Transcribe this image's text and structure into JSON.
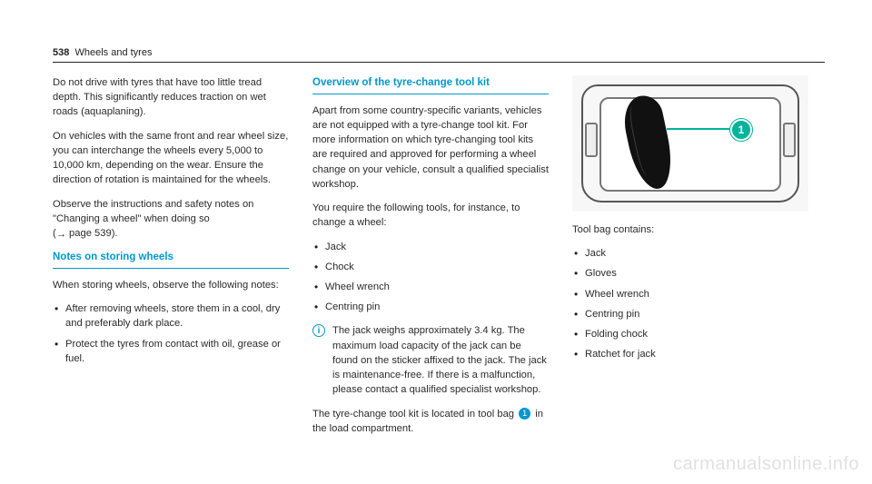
{
  "header": {
    "page_number": "538",
    "section": "Wheels and tyres"
  },
  "col1": {
    "intro_p1": "Do not drive with tyres that have too little tread depth. This significantly reduces traction on wet roads (aquaplaning).",
    "intro_p2": "On vehicles with the same front and rear wheel size, you can interchange the wheels every 5,000 to 10,000 km, depending on the wear. Ensure the direction of rotation is maintained for the wheels.",
    "intro_p3a": "Observe the instructions and safety notes on \"Changing a wheel\" when doing so",
    "intro_p3b": "page 539).",
    "heading_storing": "Notes on storing wheels",
    "storing_intro": "When storing wheels, observe the following notes:",
    "storing_b1": "After removing wheels, store them in a cool, dry and preferably dark place.",
    "storing_b2": "Protect the tyres from contact with oil, grease or fuel."
  },
  "col2": {
    "heading_toolkit": "Overview of the tyre-change tool kit",
    "p1": "Apart from some country-specific variants, vehicles are not equipped with a tyre-change tool kit. For more information on which tyre-changing tool kits are required and approved for performing a wheel change on your vehicle, consult a qualified specialist workshop.",
    "p2": "You require the following tools, for instance, to change a wheel:",
    "tools_b1": "Jack",
    "tools_b2": "Chock",
    "tools_b3": "Wheel wrench",
    "tools_b4": "Centring pin",
    "info_note": "The jack weighs approximately 3.4 kg. The maximum load capacity of the jack can be found on the sticker affixed to the jack. The jack is maintenance-free. If there is a malfunction, please contact a qualified specialist workshop.",
    "p3a": "The tyre-change tool kit is located in tool bag",
    "p3b": "in the load compartment.",
    "circle_1": "1"
  },
  "col3": {
    "callout_1": "1",
    "bag_label": "Tool bag contains:",
    "bag_b1": "Jack",
    "bag_b2": "Gloves",
    "bag_b3": "Wheel wrench",
    "bag_b4": "Centring pin",
    "bag_b5": "Folding chock",
    "bag_b6": "Ratchet for jack"
  },
  "info_icon_glyph": "i",
  "arrow_glyph": "→",
  "watermark": "carmanualsonline.info"
}
